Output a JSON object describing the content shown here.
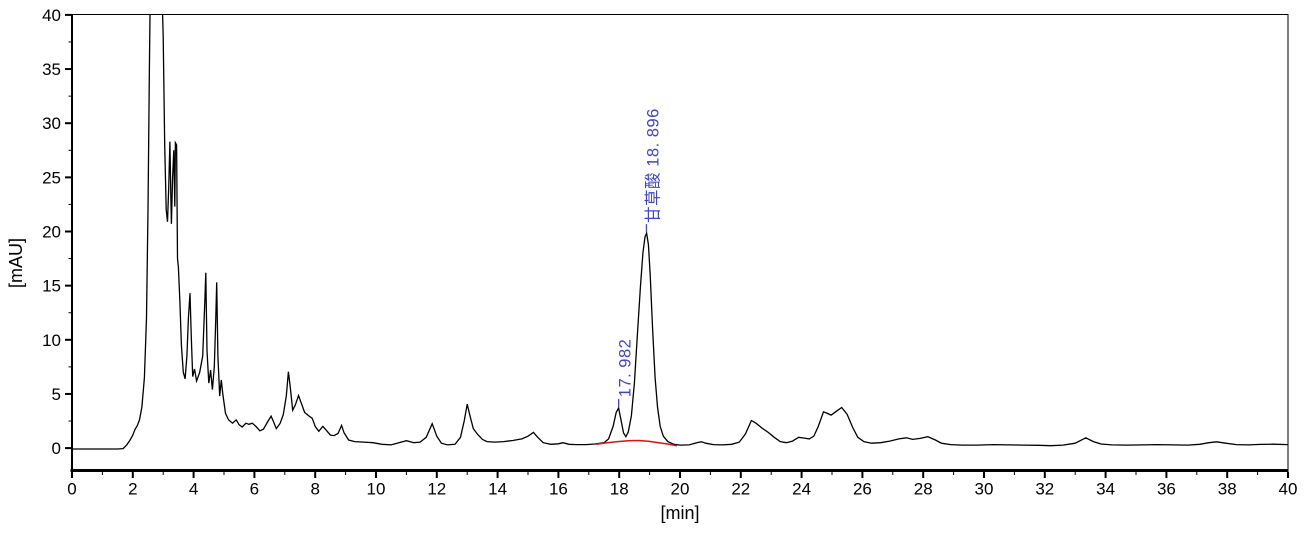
{
  "figure": {
    "background": "#ffffff",
    "trace_color": "#000000",
    "baseline_color": "#dd1111",
    "annotation_color": "#4145c8"
  },
  "chart_data": {
    "type": "line",
    "title": "",
    "xlabel": "[min]",
    "ylabel": "[mAU]",
    "xlim": [
      0,
      40
    ],
    "ylim": [
      -2.05,
      40.1
    ],
    "grid": false,
    "legend": "none",
    "x_tick_labels": [
      "0",
      "2",
      "4",
      "6",
      "8",
      "10",
      "12",
      "14",
      "16",
      "18",
      "20",
      "22",
      "24",
      "26",
      "28",
      "30",
      "32",
      "34",
      "36",
      "38",
      "40"
    ],
    "x_major_tick_step": 2,
    "x_minor_tick_step": 1,
    "y_tick_labels": [
      "0",
      "5",
      "10",
      "15",
      "20",
      "25",
      "30",
      "35",
      "40"
    ],
    "y_major_tick_step": 5,
    "y_minor_tick_step": 2.5,
    "series": [
      {
        "name": "detector-signal",
        "color": "#000000",
        "points": [
          [
            0,
            -0.08
          ],
          [
            0.5,
            -0.08
          ],
          [
            1.0,
            -0.08
          ],
          [
            1.5,
            -0.08
          ],
          [
            1.68,
            -0.05
          ],
          [
            1.8,
            0.3
          ],
          [
            1.9,
            0.7
          ],
          [
            2.0,
            1.2
          ],
          [
            2.07,
            1.7
          ],
          [
            2.15,
            2.1
          ],
          [
            2.22,
            2.6
          ],
          [
            2.3,
            3.8
          ],
          [
            2.38,
            6.5
          ],
          [
            2.45,
            12
          ],
          [
            2.5,
            22
          ],
          [
            2.55,
            36
          ],
          [
            2.58,
            43
          ],
          [
            2.95,
            43
          ],
          [
            3.0,
            38
          ],
          [
            3.05,
            28
          ],
          [
            3.1,
            22
          ],
          [
            3.14,
            20.9
          ],
          [
            3.18,
            24
          ],
          [
            3.22,
            28.3
          ],
          [
            3.25,
            23.5
          ],
          [
            3.27,
            20.7
          ],
          [
            3.31,
            25
          ],
          [
            3.35,
            27.5
          ],
          [
            3.38,
            22.3
          ],
          [
            3.4,
            28.2
          ],
          [
            3.44,
            28.0
          ],
          [
            3.47,
            17.5
          ],
          [
            3.5,
            16.7
          ],
          [
            3.55,
            13.5
          ],
          [
            3.6,
            9.5
          ],
          [
            3.66,
            7.0
          ],
          [
            3.72,
            6.4
          ],
          [
            3.78,
            8.5
          ],
          [
            3.83,
            12
          ],
          [
            3.88,
            14.3
          ],
          [
            3.92,
            10.5
          ],
          [
            3.97,
            6.6
          ],
          [
            4.03,
            7.3
          ],
          [
            4.1,
            6.2
          ],
          [
            4.2,
            7.0
          ],
          [
            4.3,
            8.5
          ],
          [
            4.37,
            13.5
          ],
          [
            4.4,
            16.2
          ],
          [
            4.44,
            9.0
          ],
          [
            4.5,
            6.0
          ],
          [
            4.56,
            7.2
          ],
          [
            4.62,
            5.4
          ],
          [
            4.68,
            7.5
          ],
          [
            4.73,
            12
          ],
          [
            4.76,
            15.3
          ],
          [
            4.8,
            8.5
          ],
          [
            4.86,
            4.8
          ],
          [
            4.91,
            6.3
          ],
          [
            4.96,
            5.0
          ],
          [
            5.05,
            3.2
          ],
          [
            5.15,
            2.6
          ],
          [
            5.28,
            2.3
          ],
          [
            5.4,
            2.6
          ],
          [
            5.5,
            2.15
          ],
          [
            5.6,
            1.95
          ],
          [
            5.72,
            2.3
          ],
          [
            5.82,
            2.2
          ],
          [
            5.93,
            2.3
          ],
          [
            6.05,
            2.0
          ],
          [
            6.18,
            1.6
          ],
          [
            6.3,
            1.75
          ],
          [
            6.45,
            2.5
          ],
          [
            6.55,
            2.95
          ],
          [
            6.62,
            2.5
          ],
          [
            6.72,
            1.8
          ],
          [
            6.85,
            2.3
          ],
          [
            6.95,
            3.1
          ],
          [
            7.05,
            4.8
          ],
          [
            7.12,
            7.05
          ],
          [
            7.18,
            5.6
          ],
          [
            7.26,
            3.5
          ],
          [
            7.35,
            4.0
          ],
          [
            7.45,
            4.85
          ],
          [
            7.55,
            4.1
          ],
          [
            7.65,
            3.3
          ],
          [
            7.78,
            3.0
          ],
          [
            7.9,
            2.75
          ],
          [
            8.0,
            2.0
          ],
          [
            8.12,
            1.55
          ],
          [
            8.25,
            2.0
          ],
          [
            8.35,
            1.7
          ],
          [
            8.5,
            1.2
          ],
          [
            8.62,
            1.15
          ],
          [
            8.75,
            1.35
          ],
          [
            8.87,
            2.1
          ],
          [
            8.95,
            1.4
          ],
          [
            9.1,
            0.75
          ],
          [
            9.3,
            0.6
          ],
          [
            9.6,
            0.55
          ],
          [
            9.9,
            0.5
          ],
          [
            10.2,
            0.35
          ],
          [
            10.5,
            0.3
          ],
          [
            10.75,
            0.5
          ],
          [
            11.0,
            0.68
          ],
          [
            11.25,
            0.5
          ],
          [
            11.45,
            0.55
          ],
          [
            11.65,
            1.0
          ],
          [
            11.85,
            2.25
          ],
          [
            12.0,
            1.1
          ],
          [
            12.15,
            0.45
          ],
          [
            12.35,
            0.3
          ],
          [
            12.6,
            0.35
          ],
          [
            12.78,
            1.0
          ],
          [
            12.9,
            2.5
          ],
          [
            13.0,
            4.05
          ],
          [
            13.1,
            2.9
          ],
          [
            13.2,
            1.8
          ],
          [
            13.35,
            1.25
          ],
          [
            13.5,
            0.8
          ],
          [
            13.65,
            0.6
          ],
          [
            13.9,
            0.55
          ],
          [
            14.2,
            0.6
          ],
          [
            14.5,
            0.7
          ],
          [
            14.8,
            0.85
          ],
          [
            15.0,
            1.1
          ],
          [
            15.18,
            1.45
          ],
          [
            15.32,
            1.0
          ],
          [
            15.5,
            0.5
          ],
          [
            15.75,
            0.35
          ],
          [
            16.0,
            0.4
          ],
          [
            16.15,
            0.5
          ],
          [
            16.35,
            0.35
          ],
          [
            16.6,
            0.32
          ],
          [
            16.9,
            0.32
          ],
          [
            17.2,
            0.38
          ],
          [
            17.5,
            0.5
          ],
          [
            17.65,
            0.85
          ],
          [
            17.8,
            2.0
          ],
          [
            17.9,
            3.3
          ],
          [
            17.98,
            3.7
          ],
          [
            18.06,
            2.6
          ],
          [
            18.14,
            1.4
          ],
          [
            18.22,
            1.05
          ],
          [
            18.3,
            1.5
          ],
          [
            18.4,
            3.0
          ],
          [
            18.5,
            6.0
          ],
          [
            18.6,
            10.5
          ],
          [
            18.7,
            15.0
          ],
          [
            18.78,
            18.0
          ],
          [
            18.85,
            19.5
          ],
          [
            18.9,
            19.85
          ],
          [
            18.96,
            18.8
          ],
          [
            19.02,
            16.0
          ],
          [
            19.1,
            11.0
          ],
          [
            19.18,
            6.5
          ],
          [
            19.26,
            3.8
          ],
          [
            19.35,
            2.0
          ],
          [
            19.45,
            1.1
          ],
          [
            19.6,
            0.6
          ],
          [
            19.8,
            0.35
          ],
          [
            20.0,
            0.28
          ],
          [
            20.3,
            0.3
          ],
          [
            20.55,
            0.5
          ],
          [
            20.7,
            0.58
          ],
          [
            20.85,
            0.45
          ],
          [
            21.1,
            0.32
          ],
          [
            21.4,
            0.3
          ],
          [
            21.7,
            0.35
          ],
          [
            21.95,
            0.55
          ],
          [
            22.15,
            1.3
          ],
          [
            22.35,
            2.55
          ],
          [
            22.5,
            2.3
          ],
          [
            22.7,
            1.85
          ],
          [
            22.9,
            1.45
          ],
          [
            23.1,
            1.0
          ],
          [
            23.3,
            0.6
          ],
          [
            23.5,
            0.5
          ],
          [
            23.7,
            0.65
          ],
          [
            23.9,
            1.0
          ],
          [
            24.1,
            0.92
          ],
          [
            24.25,
            0.85
          ],
          [
            24.4,
            1.1
          ],
          [
            24.55,
            2.0
          ],
          [
            24.72,
            3.35
          ],
          [
            24.85,
            3.2
          ],
          [
            24.97,
            3.05
          ],
          [
            25.12,
            3.35
          ],
          [
            25.32,
            3.75
          ],
          [
            25.5,
            3.1
          ],
          [
            25.68,
            1.9
          ],
          [
            25.85,
            1.0
          ],
          [
            26.05,
            0.6
          ],
          [
            26.3,
            0.45
          ],
          [
            26.6,
            0.5
          ],
          [
            26.9,
            0.65
          ],
          [
            27.2,
            0.85
          ],
          [
            27.45,
            0.95
          ],
          [
            27.65,
            0.8
          ],
          [
            27.9,
            0.9
          ],
          [
            28.15,
            1.05
          ],
          [
            28.4,
            0.75
          ],
          [
            28.6,
            0.45
          ],
          [
            28.9,
            0.32
          ],
          [
            29.3,
            0.28
          ],
          [
            29.8,
            0.28
          ],
          [
            30.3,
            0.32
          ],
          [
            30.8,
            0.3
          ],
          [
            31.3,
            0.28
          ],
          [
            31.8,
            0.26
          ],
          [
            32.2,
            0.22
          ],
          [
            32.6,
            0.28
          ],
          [
            33.0,
            0.45
          ],
          [
            33.35,
            0.95
          ],
          [
            33.6,
            0.6
          ],
          [
            33.85,
            0.38
          ],
          [
            34.2,
            0.3
          ],
          [
            34.7,
            0.28
          ],
          [
            35.2,
            0.3
          ],
          [
            35.7,
            0.32
          ],
          [
            36.2,
            0.3
          ],
          [
            36.7,
            0.28
          ],
          [
            37.1,
            0.35
          ],
          [
            37.4,
            0.5
          ],
          [
            37.65,
            0.58
          ],
          [
            37.95,
            0.45
          ],
          [
            38.3,
            0.32
          ],
          [
            38.7,
            0.3
          ],
          [
            39.1,
            0.34
          ],
          [
            39.5,
            0.36
          ],
          [
            40,
            0.32
          ]
        ]
      },
      {
        "name": "integration-baseline",
        "color": "#dd1111",
        "points": [
          [
            17.25,
            0.35
          ],
          [
            17.6,
            0.5
          ],
          [
            17.95,
            0.6
          ],
          [
            18.3,
            0.68
          ],
          [
            18.65,
            0.7
          ],
          [
            19.0,
            0.62
          ],
          [
            19.3,
            0.5
          ],
          [
            19.6,
            0.38
          ],
          [
            19.9,
            0.22
          ]
        ]
      }
    ],
    "peak_annotations": [
      {
        "label": "17. 982",
        "rt": 17.982,
        "apex_mAU": 3.7,
        "label_bottom_mAU": 4.7,
        "color": "#4145c8"
      },
      {
        "label": "甘草酸 18. 896",
        "rt": 18.896,
        "apex_mAU": 19.85,
        "label_bottom_mAU": 20.8,
        "color": "#4145c8"
      }
    ]
  }
}
